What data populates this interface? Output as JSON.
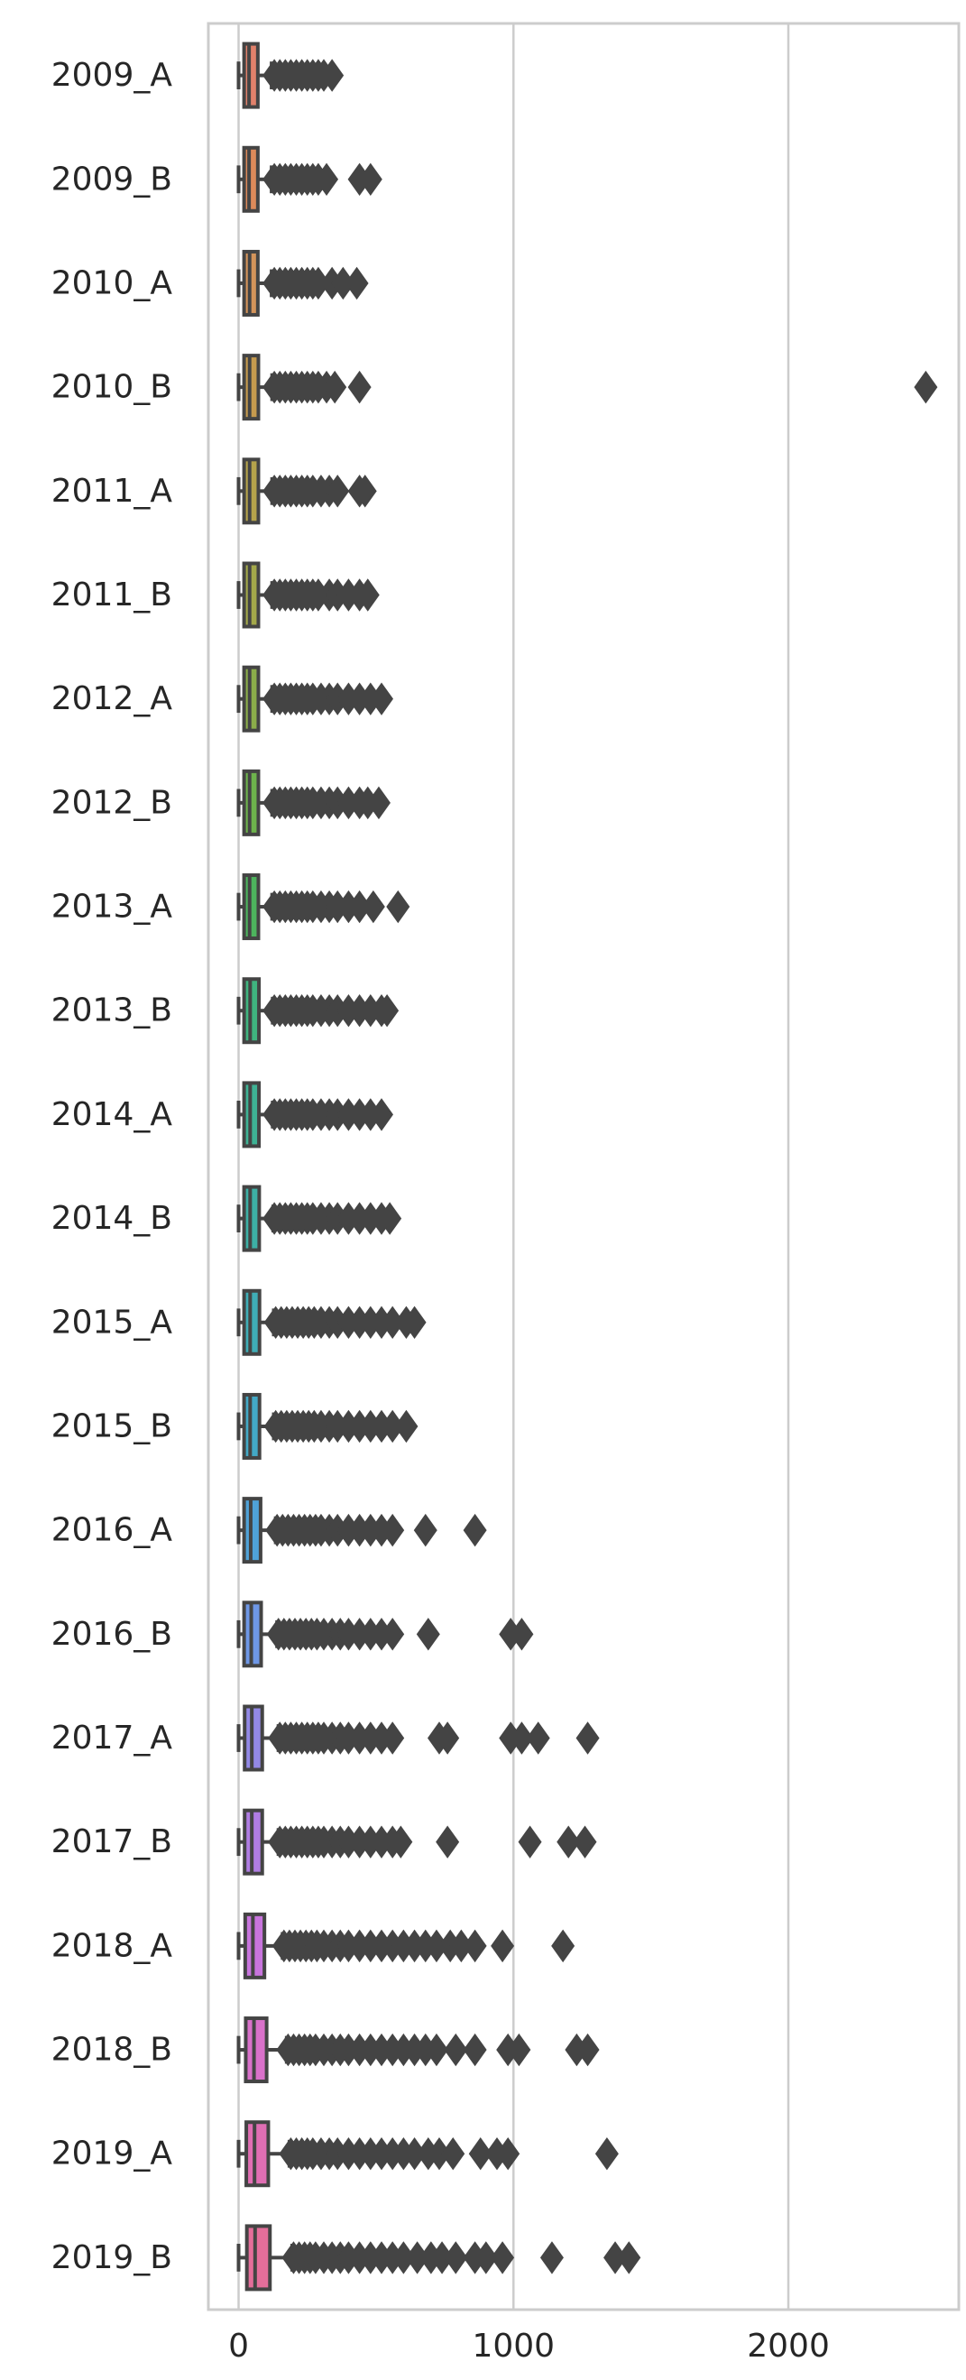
{
  "chart_data": {
    "type": "boxplot",
    "orientation": "horizontal",
    "categories": [
      "2009_A",
      "2009_B",
      "2010_A",
      "2010_B",
      "2011_A",
      "2011_B",
      "2012_A",
      "2012_B",
      "2013_A",
      "2013_B",
      "2014_A",
      "2014_B",
      "2015_A",
      "2015_B",
      "2016_A",
      "2016_B",
      "2017_A",
      "2017_B",
      "2018_A",
      "2018_B",
      "2019_A",
      "2019_B"
    ],
    "xlim": [
      -110,
      2620
    ],
    "xticks": [
      0,
      1000,
      2000
    ],
    "xtick_labels": [
      "0",
      "1000",
      "2000"
    ],
    "grid": true,
    "colors": [
      "#e1816b",
      "#dd8a5a",
      "#d4945a",
      "#c69b4e",
      "#b5a34b",
      "#a3a84a",
      "#8bad4a",
      "#6db34c",
      "#4db45d",
      "#3fb47f",
      "#3eb294",
      "#3db0a5",
      "#3fadb6",
      "#43a9c6",
      "#4fa2d8",
      "#6e97e6",
      "#9389e6",
      "#b07de3",
      "#c874dd",
      "#d971ca",
      "#e06eb3",
      "#e46e9a"
    ],
    "boxes": [
      {
        "min": 0,
        "q1": 20,
        "median": 38,
        "q3": 70,
        "max": 120,
        "outliers": [
          130,
          150,
          170,
          190,
          210,
          230,
          250,
          270,
          290,
          310,
          340
        ]
      },
      {
        "min": 0,
        "q1": 20,
        "median": 38,
        "q3": 70,
        "max": 120,
        "outliers": [
          130,
          150,
          170,
          190,
          210,
          230,
          250,
          270,
          290,
          320,
          440,
          480
        ]
      },
      {
        "min": 0,
        "q1": 20,
        "median": 40,
        "q3": 70,
        "max": 120,
        "outliers": [
          130,
          150,
          170,
          190,
          210,
          230,
          250,
          270,
          290,
          340,
          380,
          430
        ]
      },
      {
        "min": 0,
        "q1": 20,
        "median": 40,
        "q3": 72,
        "max": 122,
        "outliers": [
          130,
          150,
          170,
          190,
          210,
          230,
          250,
          270,
          290,
          320,
          350,
          440,
          2500
        ]
      },
      {
        "min": 0,
        "q1": 20,
        "median": 40,
        "q3": 72,
        "max": 122,
        "outliers": [
          130,
          150,
          170,
          190,
          210,
          230,
          250,
          270,
          300,
          330,
          360,
          440,
          460
        ]
      },
      {
        "min": 0,
        "q1": 20,
        "median": 40,
        "q3": 72,
        "max": 122,
        "outliers": [
          130,
          150,
          170,
          190,
          210,
          230,
          250,
          270,
          290,
          330,
          360,
          400,
          440,
          470
        ]
      },
      {
        "min": 0,
        "q1": 20,
        "median": 40,
        "q3": 72,
        "max": 122,
        "outliers": [
          130,
          150,
          170,
          190,
          210,
          230,
          250,
          270,
          300,
          330,
          360,
          400,
          440,
          480,
          520
        ]
      },
      {
        "min": 0,
        "q1": 20,
        "median": 40,
        "q3": 72,
        "max": 122,
        "outliers": [
          130,
          150,
          170,
          190,
          210,
          230,
          250,
          270,
          300,
          330,
          360,
          400,
          440,
          470,
          510
        ]
      },
      {
        "min": 0,
        "q1": 20,
        "median": 40,
        "q3": 72,
        "max": 122,
        "outliers": [
          130,
          150,
          170,
          190,
          210,
          230,
          250,
          270,
          300,
          330,
          360,
          400,
          440,
          490,
          580
        ]
      },
      {
        "min": 0,
        "q1": 20,
        "median": 42,
        "q3": 74,
        "max": 124,
        "outliers": [
          130,
          150,
          170,
          190,
          210,
          230,
          250,
          270,
          300,
          330,
          360,
          400,
          440,
          480,
          520,
          540
        ]
      },
      {
        "min": 0,
        "q1": 20,
        "median": 42,
        "q3": 74,
        "max": 124,
        "outliers": [
          130,
          150,
          170,
          190,
          210,
          230,
          250,
          270,
          300,
          330,
          360,
          400,
          440,
          480,
          520
        ]
      },
      {
        "min": 0,
        "q1": 20,
        "median": 42,
        "q3": 75,
        "max": 126,
        "outliers": [
          130,
          150,
          170,
          190,
          210,
          230,
          250,
          270,
          300,
          330,
          360,
          400,
          440,
          480,
          520,
          550
        ]
      },
      {
        "min": 0,
        "q1": 20,
        "median": 42,
        "q3": 76,
        "max": 128,
        "outliers": [
          135,
          155,
          175,
          195,
          215,
          235,
          255,
          275,
          300,
          330,
          360,
          400,
          440,
          480,
          520,
          560,
          610,
          640
        ]
      },
      {
        "min": 0,
        "q1": 20,
        "median": 42,
        "q3": 76,
        "max": 128,
        "outliers": [
          135,
          155,
          175,
          195,
          215,
          235,
          255,
          275,
          300,
          330,
          360,
          400,
          440,
          480,
          520,
          560,
          610
        ]
      },
      {
        "min": 0,
        "q1": 20,
        "median": 44,
        "q3": 80,
        "max": 135,
        "outliers": [
          140,
          160,
          180,
          200,
          220,
          240,
          260,
          280,
          300,
          330,
          360,
          400,
          440,
          480,
          520,
          560,
          680,
          860
        ]
      },
      {
        "min": 0,
        "q1": 20,
        "median": 46,
        "q3": 82,
        "max": 140,
        "outliers": [
          145,
          165,
          185,
          205,
          225,
          245,
          265,
          285,
          310,
          340,
          370,
          400,
          440,
          480,
          520,
          560,
          690,
          990,
          1030
        ]
      },
      {
        "min": 0,
        "q1": 22,
        "median": 48,
        "q3": 86,
        "max": 145,
        "outliers": [
          150,
          170,
          190,
          210,
          230,
          250,
          270,
          290,
          310,
          340,
          370,
          400,
          440,
          480,
          520,
          560,
          730,
          760,
          990,
          1030,
          1090,
          1270
        ]
      },
      {
        "min": 0,
        "q1": 22,
        "median": 48,
        "q3": 86,
        "max": 145,
        "outliers": [
          150,
          170,
          190,
          210,
          230,
          250,
          270,
          290,
          310,
          340,
          370,
          400,
          440,
          480,
          520,
          560,
          590,
          760,
          1060,
          1200,
          1260
        ]
      },
      {
        "min": 0,
        "q1": 24,
        "median": 52,
        "q3": 94,
        "max": 160,
        "outliers": [
          165,
          185,
          205,
          225,
          245,
          265,
          285,
          310,
          340,
          370,
          400,
          440,
          480,
          520,
          560,
          600,
          640,
          680,
          720,
          770,
          810,
          860,
          960,
          1180
        ]
      },
      {
        "min": 0,
        "q1": 26,
        "median": 56,
        "q3": 102,
        "max": 175,
        "outliers": [
          180,
          200,
          220,
          240,
          260,
          280,
          310,
          340,
          370,
          400,
          440,
          480,
          520,
          560,
          600,
          640,
          680,
          720,
          790,
          860,
          980,
          1020,
          1230,
          1270
        ]
      },
      {
        "min": 0,
        "q1": 28,
        "median": 58,
        "q3": 108,
        "max": 185,
        "outliers": [
          190,
          210,
          230,
          250,
          270,
          300,
          330,
          360,
          400,
          440,
          480,
          520,
          560,
          600,
          640,
          690,
          730,
          780,
          880,
          940,
          980,
          1340
        ]
      },
      {
        "min": 0,
        "q1": 30,
        "median": 60,
        "q3": 114,
        "max": 195,
        "outliers": [
          200,
          220,
          240,
          260,
          280,
          310,
          340,
          370,
          400,
          440,
          480,
          520,
          560,
          600,
          650,
          700,
          740,
          790,
          860,
          900,
          960,
          1140,
          1370,
          1420
        ]
      }
    ]
  }
}
